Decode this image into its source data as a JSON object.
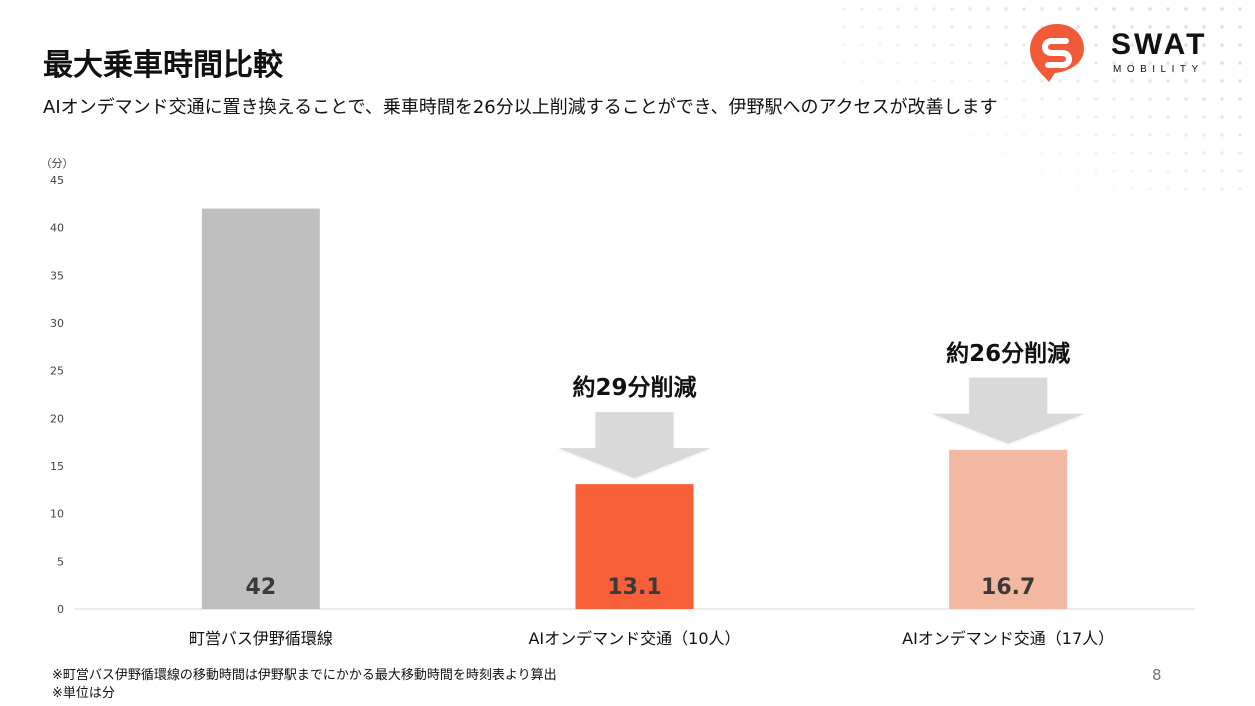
{
  "title": "最大乗車時間比較",
  "subtitle": "AIオンデマンド交通に置き換えることで、乗車時間を26分以上削減することができ、伊野駅へのアクセスが改善します",
  "logo": {
    "word": "SWAT",
    "sub": "MOBILITY",
    "brand_color": "#f15a38"
  },
  "chart_data": {
    "type": "bar",
    "unit_label": "（分）",
    "ylim": [
      0,
      45
    ],
    "yticks": [
      0,
      5,
      10,
      15,
      20,
      25,
      30,
      35,
      40,
      45
    ],
    "categories": [
      "町営バス伊野循環線",
      "AIオンデマンド交通（10人）",
      "AIオンデマンド交通（17人）"
    ],
    "values": [
      42,
      13.1,
      16.7
    ],
    "data_labels": [
      "42",
      "13.1",
      "16.7"
    ],
    "colors": [
      "#bfbfbf",
      "#f8603a",
      "#f2b8a1"
    ],
    "annotations": [
      {
        "category": 1,
        "text": "約29分削減"
      },
      {
        "category": 2,
        "text": "約26分削減"
      }
    ],
    "grid": false
  },
  "footnotes": [
    "※町営バス伊野循環線の移動時間は伊野駅までにかかる最大移動時間を時刻表より算出",
    "※単位は分"
  ],
  "page_number": "8"
}
